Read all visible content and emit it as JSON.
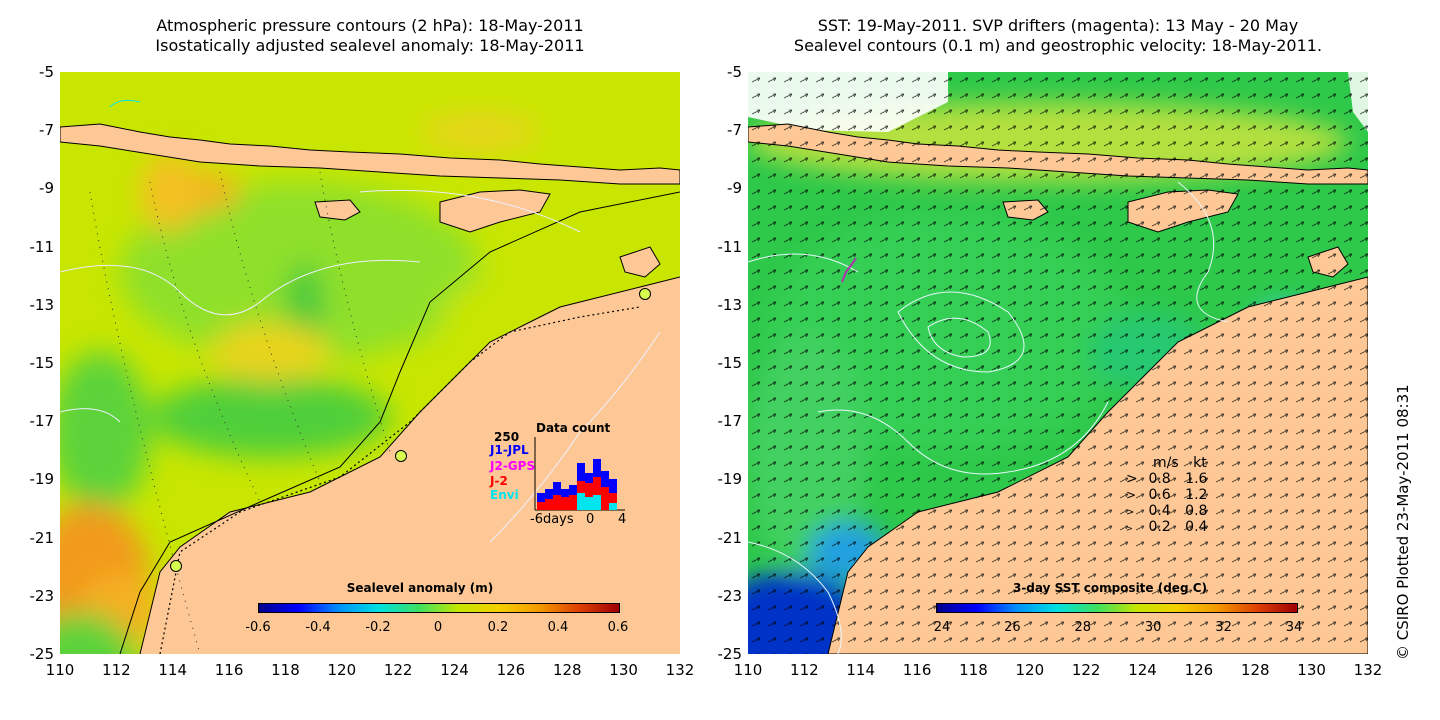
{
  "left": {
    "title_line1": "Atmospheric pressure contours (2 hPa): 18-May-2011",
    "title_line2": "Isostatically adjusted sealevel anomaly: 18-May-2011",
    "colorbar_title": "Sealevel anomaly (m)",
    "colorbar_ticks": [
      "-0.6",
      "-0.4",
      "-0.2",
      "0",
      "0.2",
      "0.4",
      "0.6"
    ],
    "data_count": {
      "title": "Data count",
      "max_label": "250",
      "series": [
        {
          "name": "J1-JPL",
          "color": "#0000ff"
        },
        {
          "name": "J2-GPS",
          "color": "#ff00ff"
        },
        {
          "name": "J-2",
          "color": "#ff0000"
        },
        {
          "name": "Envi",
          "color": "#00e5ee"
        }
      ],
      "xlabel_left": "-6days",
      "xlabel_mid": "0",
      "xlabel_right": "4"
    }
  },
  "right": {
    "title_line1": "SST: 19-May-2011. SVP drifters (magenta): 13 May - 20 May",
    "title_line2": "Sealevel contours (0.1 m) and geostrophic velocity: 18-May-2011.",
    "colorbar_title": "3-day SST composite (deg C)",
    "colorbar_ticks": [
      "24",
      "26",
      "28",
      "30",
      "32",
      "34"
    ],
    "velocity_legend": {
      "header_ms": "m/s",
      "header_kt": "kt",
      "rows": [
        {
          "ms": "0.8",
          "kt": "1.6"
        },
        {
          "ms": "0.6",
          "kt": "1.2"
        },
        {
          "ms": "0.4",
          "kt": "0.8"
        },
        {
          "ms": "0.2",
          "kt": "0.4"
        }
      ]
    }
  },
  "axes": {
    "y_ticks": [
      "-5",
      "-7",
      "-9",
      "-11",
      "-13",
      "-15",
      "-17",
      "-19",
      "-21",
      "-23",
      "-25"
    ],
    "x_ticks": [
      "110",
      "112",
      "114",
      "116",
      "118",
      "120",
      "122",
      "124",
      "126",
      "128",
      "130",
      "132"
    ]
  },
  "copyright": "© CSIRO Plotted 23-May-2011 08:31"
}
